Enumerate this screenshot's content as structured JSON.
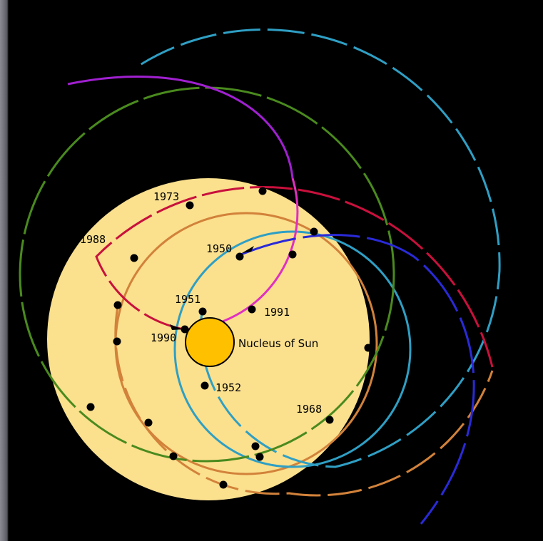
{
  "labels": {
    "nucleus": "Nucleus of Sun",
    "y1973": "1973",
    "y1988": "1988",
    "y1950": "1950",
    "y1951": "1951",
    "y1991": "1991",
    "y1990": "1990",
    "y1952": "1952",
    "y1968": "1968"
  },
  "colors": {
    "sun_disc": "#fbe08e",
    "nucleus": "#ffc000",
    "orange_orbit": "#d2823a",
    "teal_orbit": "#2f9fc4",
    "green_orbit": "#4a8a1e",
    "crimson_orbit": "#c8103c",
    "purple_orbit": "#a020d0",
    "magenta_orbit": "#e030c0",
    "blue_orbit": "#2a2ad8",
    "background": "#000000"
  },
  "icons": {
    "arrow_1950": "arrowhead-icon",
    "arrow_1990": "arrowhead-icon"
  }
}
